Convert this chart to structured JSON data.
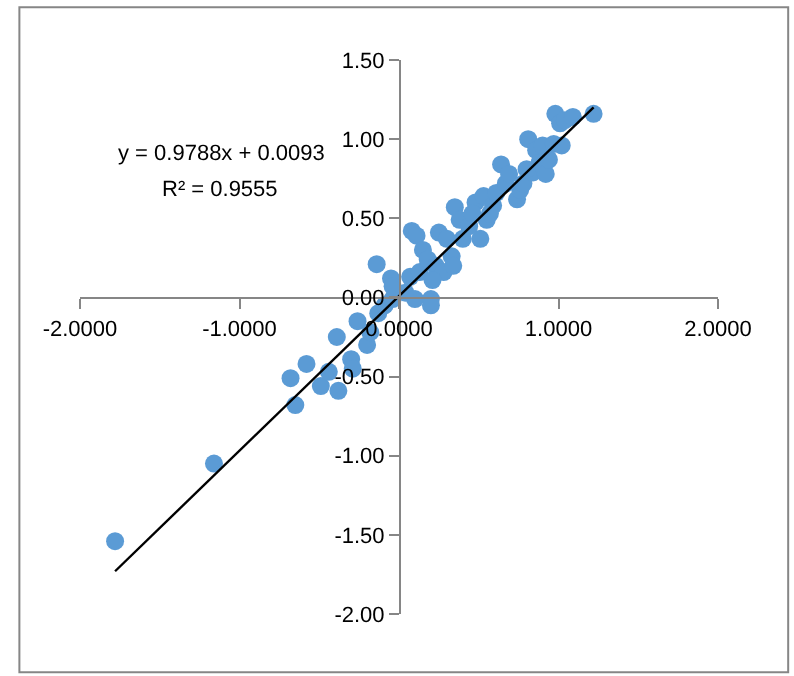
{
  "chart_data": {
    "type": "scatter",
    "xlim": [
      -2,
      2
    ],
    "xticks": [
      {
        "value": -2,
        "label": "-2.0000"
      },
      {
        "value": -1,
        "label": "-1.0000"
      },
      {
        "value": 0,
        "label": "0.0000"
      },
      {
        "value": 1,
        "label": "1.0000"
      },
      {
        "value": 2,
        "label": "2.0000"
      }
    ],
    "ylim": [
      -2,
      1.5
    ],
    "yticks": [
      {
        "value": -2,
        "label": "-2.00"
      },
      {
        "value": -1.5,
        "label": "-1.50"
      },
      {
        "value": -1,
        "label": "-1.00"
      },
      {
        "value": -0.5,
        "label": "-0.50"
      },
      {
        "value": 0,
        "label": "0.00"
      },
      {
        "value": 0.5,
        "label": "0.50"
      },
      {
        "value": 1,
        "label": "1.00"
      },
      {
        "value": 1.5,
        "label": "1.50"
      }
    ],
    "marker": "circle",
    "annotations": [
      "y = 0.9788x + 0.0093",
      "R² = 0.9555"
    ],
    "series": [
      {
        "color": "#5b9bd5",
        "x": [
          -1.78,
          -1.16,
          -0.68,
          -0.65,
          -0.58,
          -0.49,
          -0.44,
          -0.38,
          -0.39,
          -0.3,
          -0.29,
          -0.26,
          -0.2,
          -0.18,
          -0.14,
          -0.13,
          -0.09,
          -0.05,
          -0.04,
          0.04,
          0.07,
          0.08,
          0.11,
          0.1,
          0.13,
          0.15,
          0.18,
          0.2,
          0.2,
          0.23,
          0.25,
          0.3,
          0.28,
          0.33,
          0.35,
          0.34,
          0.38,
          0.4,
          0.44,
          0.48,
          0.51,
          0.53,
          0.55,
          0.59,
          0.61,
          0.64,
          0.67,
          0.69,
          0.74,
          0.76,
          0.78,
          0.81,
          0.84,
          0.86,
          0.88,
          0.9,
          0.92,
          0.94,
          0.97,
          0.98,
          1.01,
          1.02,
          1.04,
          1.09,
          1.22,
          -0.04,
          0.21,
          0.46,
          0.57,
          0.8
        ],
        "values": [
          -1.54,
          -1.05,
          -0.51,
          -0.68,
          -0.42,
          -0.56,
          -0.47,
          -0.59,
          -0.25,
          -0.39,
          -0.45,
          -0.15,
          -0.3,
          -0.22,
          0.21,
          -0.1,
          -0.05,
          0.12,
          -0.01,
          0.03,
          0.13,
          0.42,
          0.39,
          -0.01,
          0.16,
          0.3,
          0.24,
          -0.01,
          -0.05,
          0.2,
          0.41,
          0.37,
          0.16,
          0.26,
          0.57,
          0.2,
          0.49,
          0.37,
          0.45,
          0.6,
          0.37,
          0.64,
          0.49,
          0.58,
          0.66,
          0.84,
          0.72,
          0.78,
          0.62,
          0.68,
          0.72,
          1.0,
          0.79,
          0.93,
          0.85,
          0.96,
          0.78,
          0.87,
          0.97,
          1.16,
          1.1,
          0.96,
          1.12,
          1.14,
          1.16,
          0.07,
          0.11,
          0.53,
          0.53,
          0.81
        ]
      },
      {
        "type": "line",
        "marker": "none",
        "color": "#000000",
        "x": [
          -1.78,
          1.22
        ],
        "values": [
          -1.73,
          1.2
        ]
      }
    ]
  }
}
